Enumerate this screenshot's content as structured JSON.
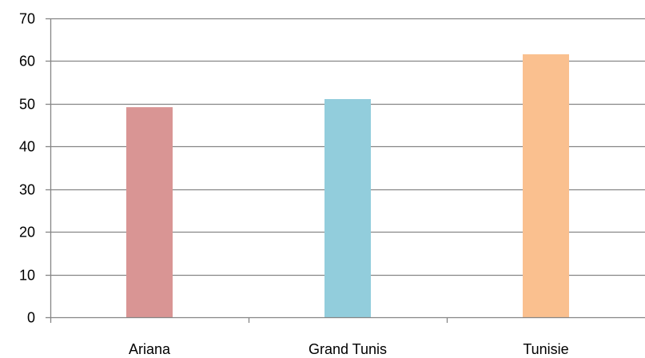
{
  "chart_data": {
    "type": "bar",
    "title": "",
    "xlabel": "",
    "ylabel": "",
    "categories": [
      "Ariana",
      "Grand Tunis",
      "Tunisie"
    ],
    "values": [
      49.2,
      51.1,
      61.6
    ],
    "bar_colors": [
      "#d99594",
      "#92cddc",
      "#fac08f"
    ],
    "ylim": [
      0,
      70
    ],
    "yticks": [
      "0",
      "10",
      "20",
      "30",
      "40",
      "50",
      "60",
      "70"
    ],
    "grid": true,
    "legend": "none"
  }
}
